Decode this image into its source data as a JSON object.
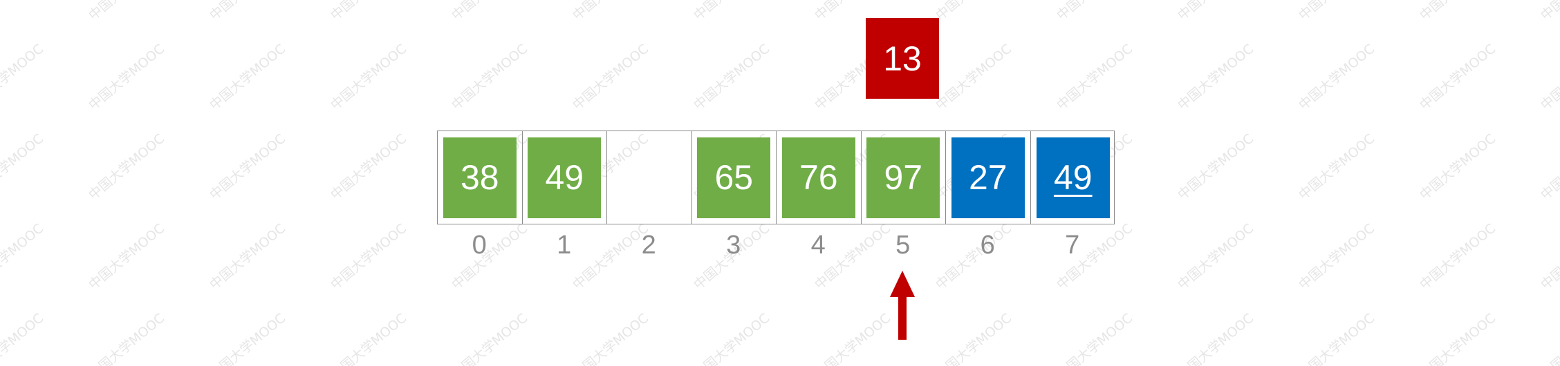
{
  "key": {
    "value": "13",
    "color": "#c00000"
  },
  "array": {
    "cells": [
      {
        "value": "38",
        "state": "green"
      },
      {
        "value": "49",
        "state": "green"
      },
      {
        "value": "",
        "state": "empty"
      },
      {
        "value": "65",
        "state": "green"
      },
      {
        "value": "76",
        "state": "green"
      },
      {
        "value": "97",
        "state": "green"
      },
      {
        "value": "27",
        "state": "blue"
      },
      {
        "value": "49",
        "state": "blue",
        "underline": true
      }
    ],
    "indices": [
      "0",
      "1",
      "2",
      "3",
      "4",
      "5",
      "6",
      "7"
    ]
  },
  "pointer": {
    "index": 5,
    "color": "#c00000",
    "icon": "up-arrow-icon"
  },
  "colors": {
    "sorted": "#70ad47",
    "unsorted": "#0070c0",
    "border": "#8a8a8a",
    "index_text": "#8c8c8c"
  },
  "watermark": {
    "text": "中国大学MOOC"
  }
}
